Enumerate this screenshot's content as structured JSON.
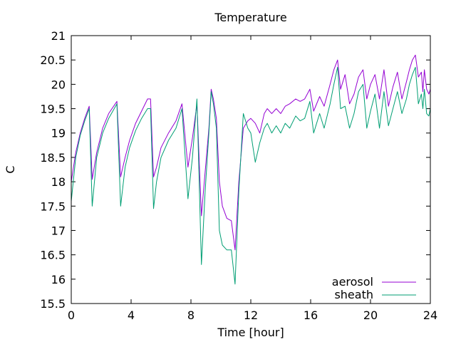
{
  "chart_data": {
    "type": "line",
    "title": "Temperature",
    "xlabel": "Time [hour]",
    "ylabel": "C",
    "xlim": [
      0,
      24
    ],
    "ylim": [
      15.5,
      21
    ],
    "xticks": [
      "0",
      "4",
      "8",
      "12",
      "16",
      "20",
      "24"
    ],
    "yticks": [
      "15.5",
      "16",
      "16.5",
      "17",
      "17.5",
      "18",
      "18.5",
      "19",
      "19.5",
      "20",
      "20.5",
      "21"
    ],
    "grid": false,
    "legend_position": "bottom-right",
    "series": [
      {
        "name": "aerosol",
        "color": "#9400d3",
        "x": [
          0,
          0.3,
          0.6,
          0.9,
          1.2,
          1.4,
          1.7,
          2.1,
          2.5,
          3.05,
          3.3,
          3.6,
          3.9,
          4.3,
          4.7,
          5.1,
          5.3,
          5.5,
          5.7,
          6.0,
          6.5,
          7.0,
          7.4,
          7.8,
          8.1,
          8.4,
          8.7,
          8.95,
          9.2,
          9.35,
          9.5,
          9.7,
          9.9,
          10.1,
          10.4,
          10.7,
          10.95,
          11.2,
          11.5,
          11.8,
          12.0,
          12.3,
          12.6,
          12.9,
          13.1,
          13.4,
          13.7,
          14.0,
          14.3,
          14.6,
          15.0,
          15.3,
          15.6,
          15.95,
          16.2,
          16.6,
          16.9,
          17.3,
          17.55,
          17.8,
          18.0,
          18.3,
          18.6,
          18.9,
          19.2,
          19.5,
          19.75,
          20.0,
          20.3,
          20.6,
          20.9,
          21.2,
          21.5,
          21.8,
          22.1,
          22.4,
          22.6,
          22.8,
          23.0,
          23.2,
          23.4,
          23.5,
          23.6,
          23.75,
          23.9,
          24.0
        ],
        "values": [
          18.0,
          18.6,
          19.0,
          19.3,
          19.55,
          18.05,
          18.6,
          19.1,
          19.4,
          19.65,
          18.1,
          18.5,
          18.85,
          19.2,
          19.45,
          19.7,
          19.7,
          18.1,
          18.3,
          18.7,
          19.0,
          19.25,
          19.6,
          18.3,
          18.9,
          19.6,
          17.3,
          18.2,
          19.1,
          19.9,
          19.7,
          19.3,
          18.0,
          17.5,
          17.25,
          17.2,
          16.6,
          18.0,
          19.1,
          19.25,
          19.3,
          19.2,
          19.0,
          19.4,
          19.5,
          19.4,
          19.5,
          19.4,
          19.55,
          19.6,
          19.7,
          19.65,
          19.7,
          19.9,
          19.45,
          19.75,
          19.55,
          20.0,
          20.3,
          20.5,
          19.9,
          20.2,
          19.6,
          19.8,
          20.15,
          20.3,
          19.7,
          20.0,
          20.2,
          19.7,
          20.3,
          19.55,
          19.95,
          20.25,
          19.7,
          20.05,
          20.3,
          20.5,
          20.6,
          20.15,
          20.25,
          19.85,
          20.3,
          19.9,
          19.8,
          19.9
        ]
      },
      {
        "name": "sheath",
        "color": "#009e73",
        "x": [
          0,
          0.3,
          0.6,
          0.9,
          1.2,
          1.4,
          1.7,
          2.1,
          2.5,
          3.05,
          3.3,
          3.6,
          3.9,
          4.3,
          4.7,
          5.1,
          5.3,
          5.5,
          5.7,
          6.0,
          6.5,
          7.0,
          7.4,
          7.8,
          8.1,
          8.4,
          8.7,
          8.95,
          9.2,
          9.35,
          9.5,
          9.7,
          9.9,
          10.1,
          10.4,
          10.7,
          10.95,
          11.2,
          11.5,
          11.8,
          12.0,
          12.3,
          12.6,
          12.9,
          13.1,
          13.4,
          13.7,
          14.0,
          14.3,
          14.6,
          15.0,
          15.3,
          15.6,
          15.95,
          16.2,
          16.6,
          16.9,
          17.3,
          17.55,
          17.8,
          18.0,
          18.3,
          18.6,
          18.9,
          19.2,
          19.5,
          19.75,
          20.0,
          20.3,
          20.6,
          20.9,
          21.2,
          21.5,
          21.8,
          22.1,
          22.4,
          22.6,
          22.8,
          23.0,
          23.2,
          23.4,
          23.5,
          23.6,
          23.75,
          23.9,
          24.0
        ],
        "values": [
          17.6,
          18.5,
          18.95,
          19.25,
          19.5,
          17.5,
          18.5,
          19.0,
          19.3,
          19.6,
          17.5,
          18.3,
          18.7,
          19.05,
          19.3,
          19.5,
          19.5,
          17.45,
          18.0,
          18.5,
          18.85,
          19.1,
          19.5,
          17.65,
          18.5,
          19.7,
          16.3,
          17.8,
          19.0,
          19.85,
          19.6,
          19.1,
          17.0,
          16.7,
          16.6,
          16.6,
          15.9,
          17.8,
          19.4,
          19.1,
          19.0,
          18.4,
          18.8,
          19.1,
          19.2,
          19.0,
          19.15,
          19.0,
          19.2,
          19.1,
          19.35,
          19.25,
          19.3,
          19.65,
          19.0,
          19.4,
          19.1,
          19.6,
          20.0,
          20.35,
          19.5,
          19.55,
          19.1,
          19.4,
          19.85,
          20.0,
          19.1,
          19.45,
          19.8,
          19.1,
          19.85,
          19.15,
          19.5,
          19.85,
          19.4,
          19.7,
          20.0,
          20.2,
          20.35,
          19.6,
          19.8,
          19.5,
          19.9,
          19.4,
          19.35,
          19.5
        ]
      }
    ]
  }
}
